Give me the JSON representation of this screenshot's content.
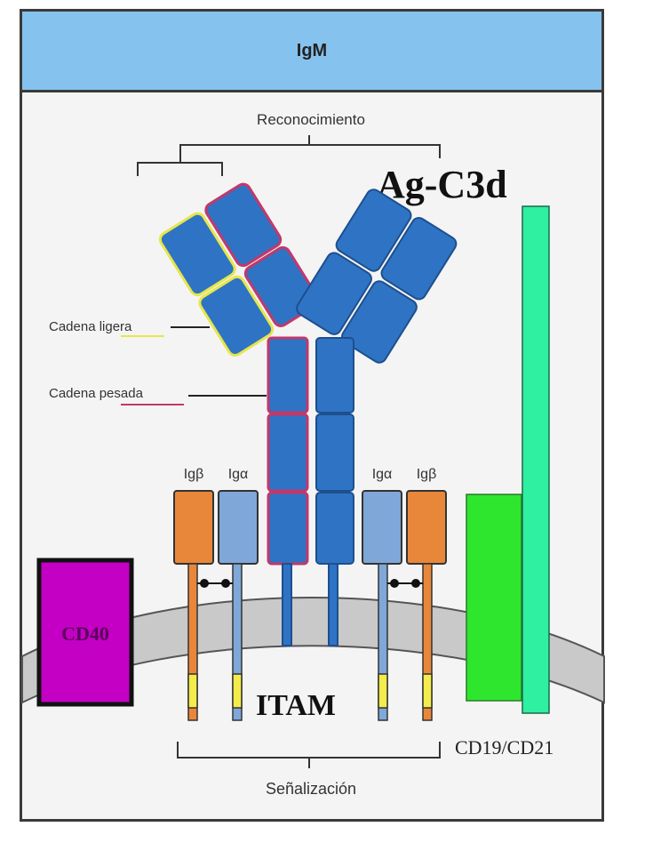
{
  "header": {
    "title": "IgM"
  },
  "labels": {
    "recognition": "Reconocimiento",
    "antigen": "Ag-C3d",
    "light_chain": "Cadena ligera",
    "heavy_chain": "Cadena pesada",
    "ig_beta_left": "Igβ",
    "ig_alpha_left": "Igα",
    "ig_alpha_right": "Igα",
    "ig_beta_right": "Igβ",
    "cd40": "CD40",
    "itam": "ITAM",
    "cd19_cd21": "CD19/CD21",
    "signaling": "Señalización"
  },
  "colors": {
    "header_bg": "#86c2ee",
    "antibody_blue": "#2f73c4",
    "light_chain_outline": "#e6e64a",
    "heavy_chain_outline": "#c0396b",
    "ig_beta": "#e8873a",
    "ig_alpha": "#7fa7d8",
    "cd40": "#c400c4",
    "cd19": "#2ee62e",
    "cd21": "#2ef0a0",
    "membrane": "#c9c9c9"
  }
}
